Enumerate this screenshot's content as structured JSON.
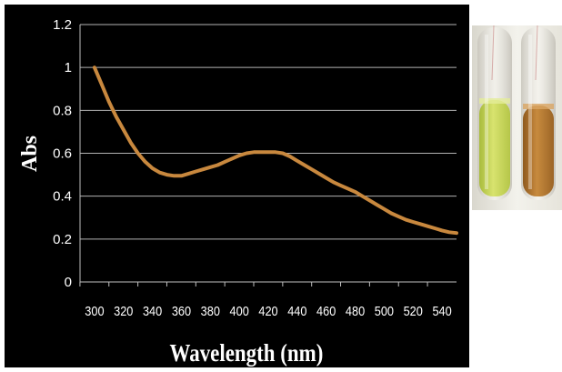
{
  "chart_data": {
    "type": "line",
    "title": "",
    "xlabel": "Wavelength (nm)",
    "ylabel": "Abs",
    "xlim": [
      290,
      550
    ],
    "ylim": [
      0,
      1.2
    ],
    "x_ticks": [
      "300",
      "320",
      "340",
      "360",
      "380",
      "400",
      "420",
      "440",
      "460",
      "480",
      "500",
      "520",
      "540"
    ],
    "y_ticks": [
      "0",
      "0.2",
      "0.4",
      "0.6",
      "0.8",
      "1",
      "1.2"
    ],
    "grid": "horizontal",
    "legend": "none",
    "series": [
      {
        "color": "#c8883e",
        "x": [
          300,
          305,
          310,
          315,
          320,
          325,
          330,
          335,
          340,
          345,
          350,
          355,
          360,
          365,
          370,
          375,
          380,
          385,
          390,
          395,
          400,
          405,
          410,
          415,
          420,
          425,
          430,
          435,
          440,
          445,
          450,
          455,
          460,
          465,
          470,
          475,
          480,
          485,
          490,
          495,
          500,
          505,
          510,
          515,
          520,
          525,
          530,
          535,
          540,
          545,
          550
        ],
        "y": [
          1.0,
          0.92,
          0.84,
          0.77,
          0.71,
          0.65,
          0.6,
          0.56,
          0.53,
          0.51,
          0.5,
          0.495,
          0.495,
          0.505,
          0.515,
          0.525,
          0.535,
          0.545,
          0.56,
          0.575,
          0.59,
          0.6,
          0.605,
          0.605,
          0.605,
          0.605,
          0.6,
          0.585,
          0.565,
          0.545,
          0.525,
          0.505,
          0.485,
          0.465,
          0.45,
          0.435,
          0.42,
          0.4,
          0.38,
          0.36,
          0.34,
          0.32,
          0.305,
          0.29,
          0.28,
          0.27,
          0.26,
          0.25,
          0.24,
          0.232,
          0.228
        ]
      }
    ]
  },
  "photo": {
    "description_icon": "test-tubes-photo",
    "left_solution_color": "#c7d65a",
    "right_solution_color": "#b7772e",
    "background_color": "#ecebe4"
  }
}
